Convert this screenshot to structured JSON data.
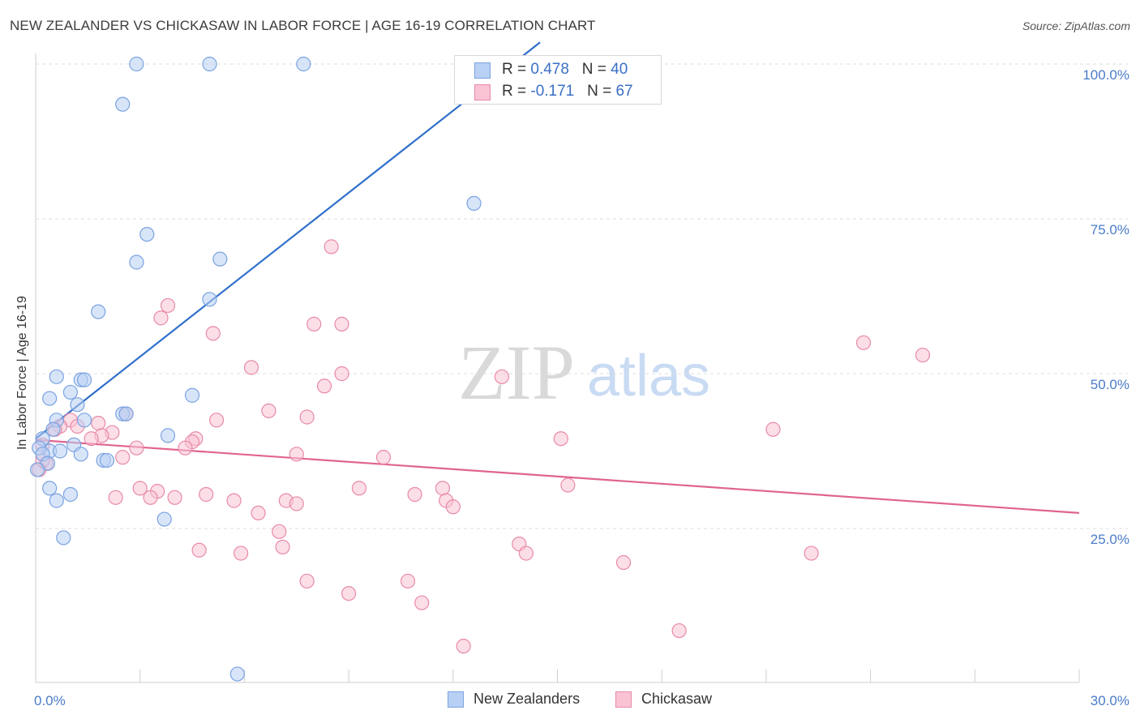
{
  "chart_data": {
    "type": "scatter",
    "title": "NEW ZEALANDER VS CHICKASAW IN LABOR FORCE | AGE 16-19 CORRELATION CHART",
    "source_label": "Source: ZipAtlas.com",
    "ylabel": "In Labor Force | Age 16-19",
    "watermark": {
      "zip": "ZIP",
      "atlas": "atlas"
    },
    "xlim": [
      0,
      30
    ],
    "ylim": [
      0,
      105
    ],
    "x_tick_labels": {
      "left": "0.0%",
      "right": "30.0%"
    },
    "y_ticks": [
      {
        "value": 25,
        "label": "25.0%"
      },
      {
        "value": 50,
        "label": "50.0%"
      },
      {
        "value": 75,
        "label": "75.0%"
      },
      {
        "value": 100,
        "label": "100.0%"
      }
    ],
    "colors": {
      "blue_fill": "#b8d0f4",
      "blue_stroke": "#7aa3e0",
      "blue_line": "#2f6fcb",
      "pink_fill": "#f9c3d4",
      "pink_stroke": "#e88aa8",
      "pink_line": "#e0648f",
      "axis_text": "#4a7cc9"
    },
    "legend": [
      {
        "r_label": "R = ",
        "r_value": "0.478",
        "n_label": "N = ",
        "n_value": "40"
      },
      {
        "r_label": "R = ",
        "r_value": "-0.171",
        "n_label": "N = ",
        "n_value": "67"
      }
    ],
    "series": [
      {
        "name": "New Zealanders",
        "trend": {
          "x0": 0.0,
          "y0": 39.5,
          "x1": 14.5,
          "y1": 103.5
        },
        "points": [
          [
            2.9,
            100
          ],
          [
            5.0,
            100
          ],
          [
            7.7,
            100
          ],
          [
            2.5,
            93.5
          ],
          [
            12.6,
            77.5
          ],
          [
            3.2,
            72.5
          ],
          [
            2.9,
            68
          ],
          [
            5.3,
            68.5
          ],
          [
            1.8,
            60
          ],
          [
            5.0,
            62
          ],
          [
            0.6,
            49.5
          ],
          [
            1.3,
            49
          ],
          [
            1.4,
            49
          ],
          [
            0.4,
            46
          ],
          [
            1.0,
            47
          ],
          [
            4.5,
            46.5
          ],
          [
            1.2,
            45
          ],
          [
            2.5,
            43.5
          ],
          [
            2.6,
            43.5
          ],
          [
            0.6,
            42.5
          ],
          [
            1.4,
            42.5
          ],
          [
            0.5,
            41
          ],
          [
            0.2,
            39.5
          ],
          [
            0.4,
            37.5
          ],
          [
            1.1,
            38.5
          ],
          [
            0.7,
            37.5
          ],
          [
            1.3,
            37
          ],
          [
            3.8,
            40
          ],
          [
            0.1,
            38
          ],
          [
            0.2,
            37
          ],
          [
            0.35,
            35.5
          ],
          [
            1.95,
            36
          ],
          [
            2.05,
            36
          ],
          [
            0.05,
            34.5
          ],
          [
            0.4,
            31.5
          ],
          [
            1.0,
            30.5
          ],
          [
            0.6,
            29.5
          ],
          [
            3.7,
            26.5
          ],
          [
            0.8,
            23.5
          ],
          [
            5.8,
            1.5
          ]
        ]
      },
      {
        "name": "Chickasaw",
        "trend": {
          "x0": 0.0,
          "y0": 39.3,
          "x1": 30.0,
          "y1": 27.5
        },
        "points": [
          [
            8.5,
            70.5
          ],
          [
            3.8,
            61
          ],
          [
            3.6,
            59
          ],
          [
            8.0,
            58
          ],
          [
            8.8,
            58
          ],
          [
            5.1,
            56.5
          ],
          [
            23.8,
            55
          ],
          [
            25.5,
            53
          ],
          [
            6.2,
            51
          ],
          [
            8.8,
            50
          ],
          [
            13.4,
            49.5
          ],
          [
            8.3,
            48
          ],
          [
            2.6,
            43.5
          ],
          [
            6.7,
            44
          ],
          [
            7.8,
            43
          ],
          [
            1.0,
            42.5
          ],
          [
            1.8,
            42
          ],
          [
            5.2,
            42.5
          ],
          [
            0.7,
            41.5
          ],
          [
            1.2,
            41.5
          ],
          [
            0.55,
            41
          ],
          [
            2.2,
            40.5
          ],
          [
            1.9,
            40
          ],
          [
            1.6,
            39.5
          ],
          [
            4.6,
            39.5
          ],
          [
            4.5,
            39
          ],
          [
            15.1,
            39.5
          ],
          [
            21.2,
            41
          ],
          [
            0.2,
            38.5
          ],
          [
            4.3,
            38
          ],
          [
            2.9,
            38
          ],
          [
            7.5,
            37
          ],
          [
            10.0,
            36.5
          ],
          [
            2.5,
            36.5
          ],
          [
            0.3,
            35.5
          ],
          [
            0.1,
            34.5
          ],
          [
            0.2,
            36
          ],
          [
            3.0,
            31.5
          ],
          [
            3.5,
            31
          ],
          [
            9.3,
            31.5
          ],
          [
            11.7,
            31.5
          ],
          [
            15.3,
            32
          ],
          [
            3.3,
            30
          ],
          [
            4.0,
            30
          ],
          [
            4.9,
            30.5
          ],
          [
            10.9,
            30.5
          ],
          [
            2.3,
            30
          ],
          [
            5.7,
            29.5
          ],
          [
            7.2,
            29.5
          ],
          [
            7.5,
            29
          ],
          [
            11.8,
            29.5
          ],
          [
            12.0,
            28.5
          ],
          [
            6.4,
            27.5
          ],
          [
            7.0,
            24.5
          ],
          [
            13.9,
            22.5
          ],
          [
            7.1,
            22
          ],
          [
            4.7,
            21.5
          ],
          [
            5.9,
            21
          ],
          [
            14.1,
            21
          ],
          [
            16.9,
            19.5
          ],
          [
            22.3,
            21
          ],
          [
            7.8,
            16.5
          ],
          [
            10.7,
            16.5
          ],
          [
            9.0,
            14.5
          ],
          [
            11.1,
            13
          ],
          [
            18.5,
            8.5
          ],
          [
            12.3,
            6
          ]
        ]
      }
    ]
  }
}
